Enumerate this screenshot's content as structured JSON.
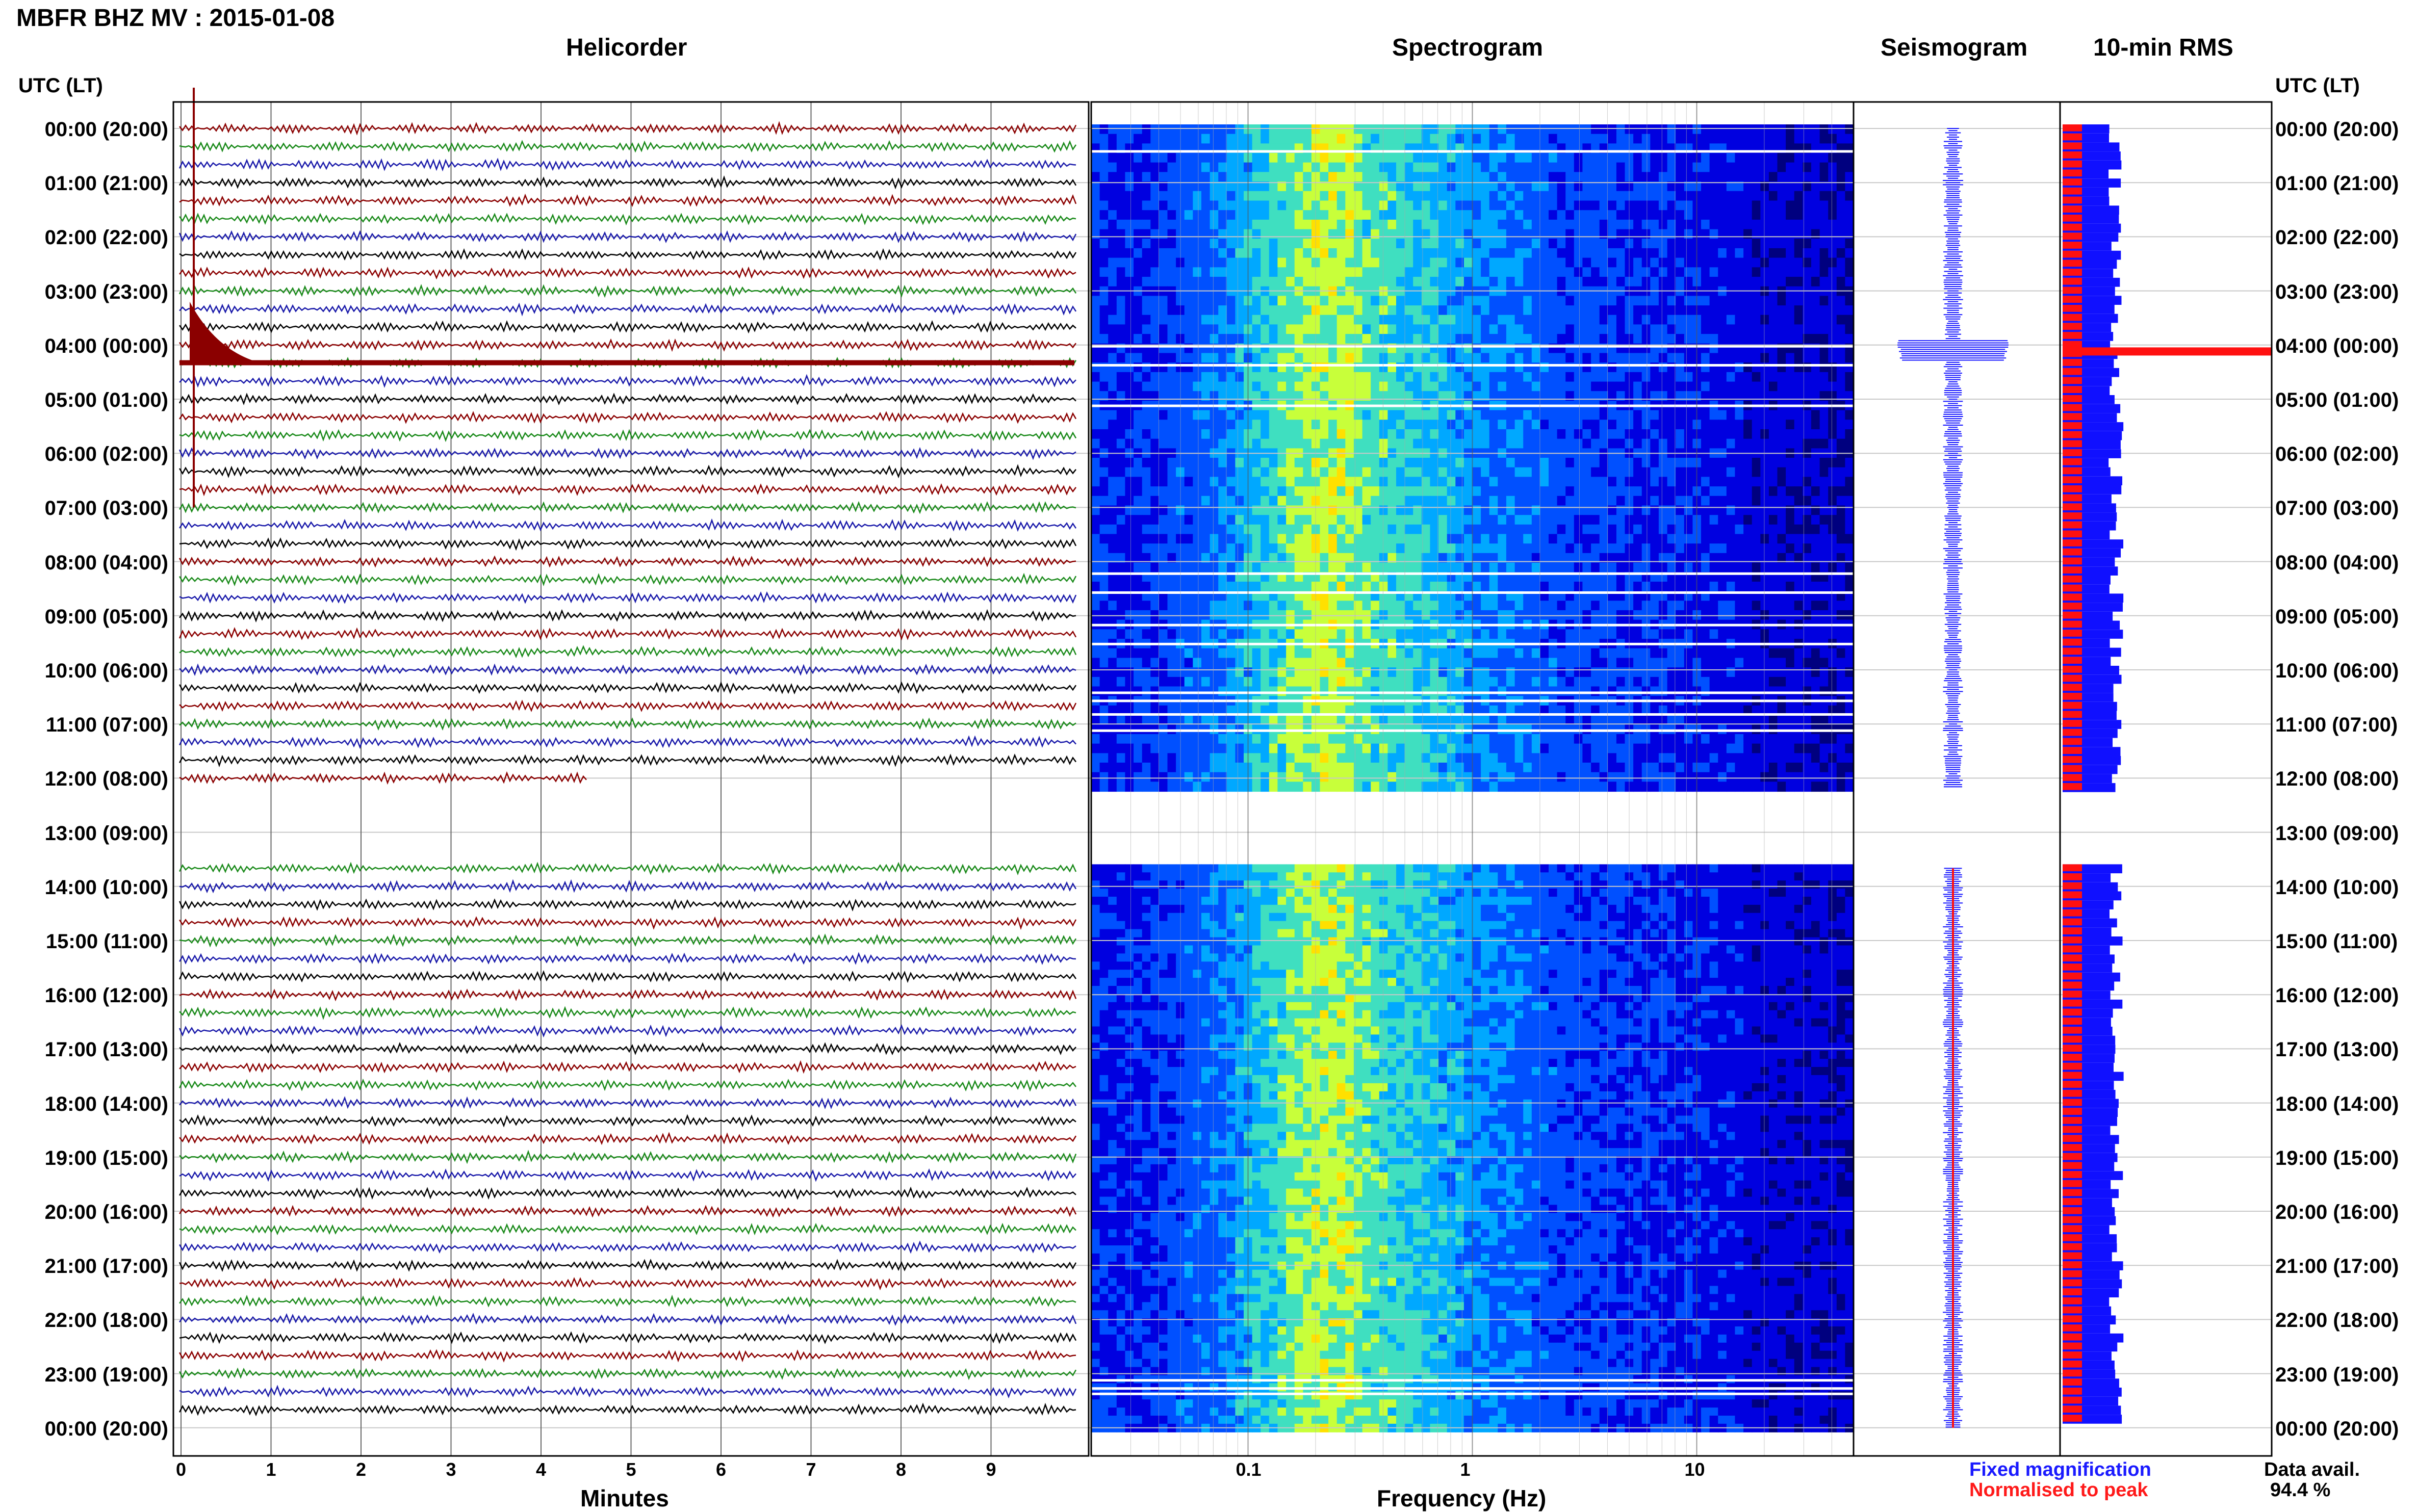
{
  "title": "MBFR BHZ MV : 2015-01-08",
  "panels": {
    "helicorder": "Helicorder",
    "spectrogram": "Spectrogram",
    "seismogram": "Seismogram",
    "rms": "10-min RMS"
  },
  "axis": {
    "left_label": "UTC (LT)",
    "right_label": "UTC (LT)",
    "minutes_label": "Minutes",
    "frequency_label": "Frequency (Hz)"
  },
  "legend": {
    "fixed": "Fixed magnification",
    "fixed_color": "#1a1aff",
    "normalised": "Normalised to peak",
    "normalised_color": "#ff1a1a",
    "availability_label": "Data avail.",
    "availability_value": "94.4 %"
  },
  "colors": {
    "trace_colors": [
      "#000000",
      "#8b0000",
      "#1a8a1a",
      "#1a1aaa"
    ],
    "rms_fixed": "#1010ff",
    "rms_normalised": "#ff1010"
  },
  "chart_data": {
    "type": "heatmap",
    "title": "MBFR BHZ MV : 2015-01-08",
    "time_labels": [
      "00:00 (20:00)",
      "01:00 (21:00)",
      "02:00 (22:00)",
      "03:00 (23:00)",
      "04:00 (00:00)",
      "05:00 (01:00)",
      "06:00 (02:00)",
      "07:00 (03:00)",
      "08:00 (04:00)",
      "09:00 (05:00)",
      "10:00 (06:00)",
      "11:00 (07:00)",
      "12:00 (08:00)",
      "13:00 (09:00)",
      "14:00 (10:00)",
      "15:00 (11:00)",
      "16:00 (12:00)",
      "17:00 (13:00)",
      "18:00 (14:00)",
      "19:00 (15:00)",
      "20:00 (16:00)",
      "21:00 (17:00)",
      "22:00 (18:00)",
      "23:00 (19:00)",
      "00:00 (20:00)"
    ],
    "minutes_ticks": [
      "0",
      "1",
      "2",
      "3",
      "4",
      "5",
      "6",
      "7",
      "8",
      "9"
    ],
    "frequency_ticks": [
      "0.1",
      "1",
      "10"
    ],
    "freq_range": [
      0.02,
      50
    ],
    "freq_scale": "log",
    "data_gap_utc": [
      "12:10",
      "13:40"
    ],
    "rms_peak_utc": "04:10",
    "data_availability_percent": 94.4
  }
}
